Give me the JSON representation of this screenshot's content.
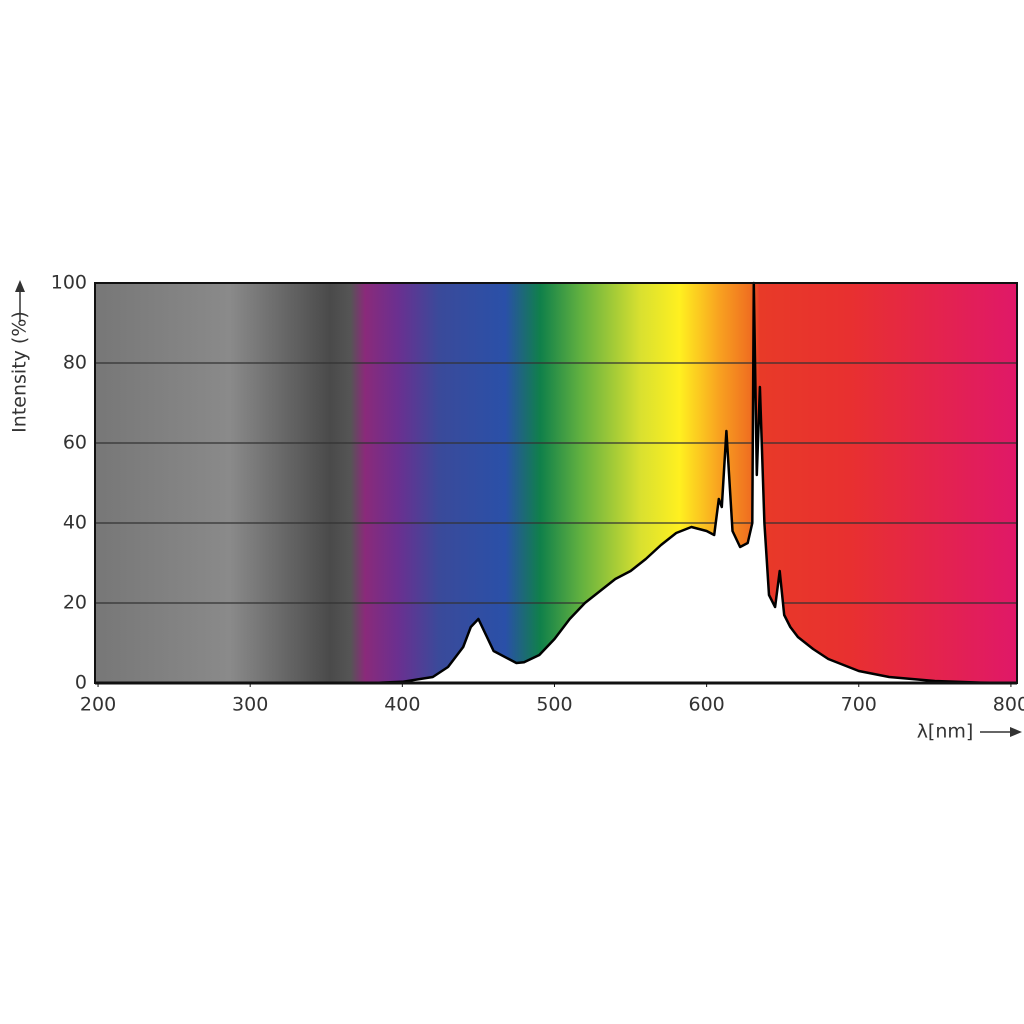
{
  "chart_data": {
    "type": "area",
    "y_label": "Intensity (%)",
    "x_label": "λ[nm]",
    "x": [
      200,
      250,
      300,
      350,
      380,
      400,
      420,
      430,
      440,
      445,
      450,
      455,
      460,
      470,
      475,
      480,
      490,
      500,
      510,
      520,
      530,
      540,
      550,
      560,
      570,
      580,
      590,
      600,
      605,
      608,
      610,
      613,
      617,
      622,
      627,
      630,
      631,
      633,
      635,
      638,
      641,
      645,
      648,
      651,
      655,
      660,
      670,
      680,
      700,
      720,
      750,
      780,
      800
    ],
    "values": [
      0,
      0,
      0,
      0,
      0,
      0.3,
      1.5,
      4,
      9,
      14,
      16,
      12,
      8,
      6,
      5,
      5.2,
      7,
      11,
      16,
      20,
      23,
      26,
      28,
      31,
      34.5,
      37.5,
      39,
      38,
      37,
      46,
      44,
      63,
      38,
      34,
      35,
      40,
      100,
      52,
      74,
      40,
      22,
      19,
      28,
      17,
      14,
      11.5,
      8.5,
      6,
      3,
      1.5,
      0.5,
      0.1,
      0
    ],
    "color": "#ffffff",
    "line_color": "#000000",
    "xlim": [
      198,
      804
    ],
    "ylim": [
      0,
      100
    ],
    "xticks": [
      200,
      300,
      400,
      500,
      600,
      700,
      800
    ],
    "yticks": [
      0,
      20,
      40,
      60,
      80,
      100
    ],
    "grid": true
  }
}
